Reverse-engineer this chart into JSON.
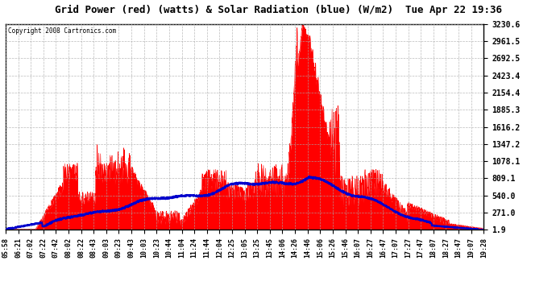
{
  "title": "Grid Power (red) (watts) & Solar Radiation (blue) (W/m2)  Tue Apr 22 19:36",
  "copyright": "Copyright 2008 Cartronics.com",
  "ymin": 1.9,
  "ymax": 3230.6,
  "yticks": [
    3230.6,
    2961.5,
    2692.5,
    2423.4,
    2154.4,
    1885.3,
    1616.2,
    1347.2,
    1078.1,
    809.1,
    540.0,
    271.0,
    1.9
  ],
  "xtick_labels": [
    "05:58",
    "06:21",
    "07:02",
    "07:22",
    "07:42",
    "08:02",
    "08:22",
    "08:43",
    "09:03",
    "09:23",
    "09:43",
    "10:03",
    "10:23",
    "10:44",
    "11:04",
    "11:24",
    "11:44",
    "12:04",
    "12:25",
    "13:05",
    "13:25",
    "13:45",
    "14:06",
    "14:26",
    "14:46",
    "15:06",
    "15:26",
    "15:46",
    "16:07",
    "16:27",
    "16:47",
    "17:07",
    "17:27",
    "17:47",
    "18:07",
    "18:27",
    "18:47",
    "19:07",
    "19:28"
  ],
  "bg_color": "#ffffff",
  "plot_bg_color": "#ffffff",
  "red_color": "#ff0000",
  "blue_color": "#0000cc",
  "grid_color": "#aaaaaa"
}
